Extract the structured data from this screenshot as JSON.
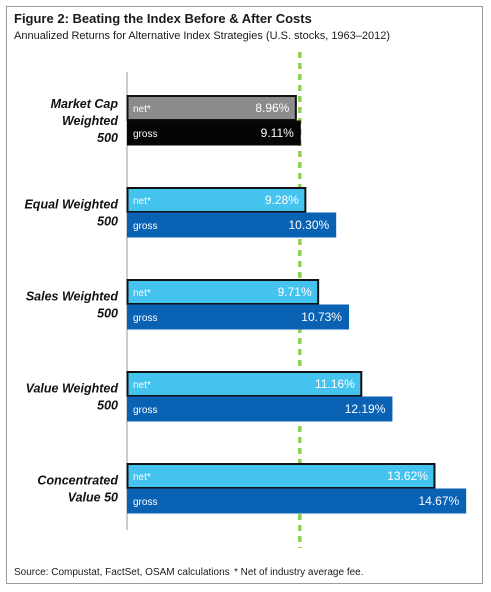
{
  "figure": {
    "title": "Figure 2: Beating the Index Before & After Costs",
    "subtitle": "Annualized Returns for Alternative Index Strategies (U.S. stocks, 1963–2012)",
    "source": "Source: Compustat, FactSet, OSAM calculations",
    "note": "* Net of industry average fee."
  },
  "chart_data": {
    "type": "bar",
    "orientation": "horizontal",
    "title": "Figure 2: Beating the Index Before & After Costs",
    "subtitle": "Annualized Returns for Alternative Index Strategies (U.S. stocks, 1963–2012)",
    "categories": [
      [
        "Market Cap",
        "Weighted",
        "500"
      ],
      [
        "Equal Weighted",
        "500"
      ],
      [
        "Sales Weighted",
        "500"
      ],
      [
        "Value Weighted",
        "500"
      ],
      [
        "Concentrated",
        "Value 50"
      ]
    ],
    "series": [
      {
        "name": "net*",
        "values": [
          8.96,
          9.28,
          9.71,
          11.16,
          13.62
        ],
        "labels": [
          "8.96%",
          "9.28%",
          "9.71%",
          "11.16%",
          "13.62%"
        ],
        "colors": [
          "#8c8c8c",
          "#45c3ef",
          "#45c3ef",
          "#45c3ef",
          "#45c3ef"
        ]
      },
      {
        "name": "gross",
        "values": [
          9.11,
          10.3,
          10.73,
          12.19,
          14.67
        ],
        "labels": [
          "9.11%",
          "10.30%",
          "10.73%",
          "12.19%",
          "14.67%"
        ],
        "colors": [
          "#050505",
          "#0a62b4",
          "#0a62b4",
          "#0a62b4",
          "#0a62b4"
        ]
      }
    ],
    "reference_line": {
      "value": 9.11,
      "style": "dashed",
      "color": "#8ed14f"
    },
    "xlim": [
      3.3,
      15.0
    ],
    "grid": false,
    "legend": "none"
  }
}
